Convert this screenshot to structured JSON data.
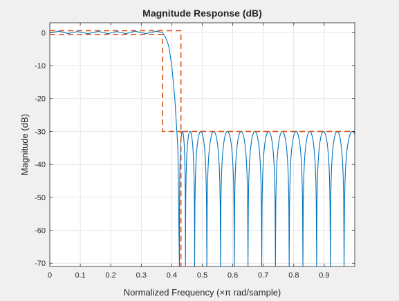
{
  "chart_data": {
    "type": "line",
    "title": "Magnitude Response (dB)",
    "xlabel": "Normalized Frequency (×π rad/sample)",
    "ylabel": "Magnitude (dB)",
    "xlim": [
      0,
      1
    ],
    "ylim": [
      -71,
      3
    ],
    "grid": true,
    "x_ticks": [
      "0",
      "0.1",
      "0.2",
      "0.3",
      "0.4",
      "0.5",
      "0.6",
      "0.7",
      "0.8",
      "0.9"
    ],
    "x_tick_values": [
      0,
      0.1,
      0.2,
      0.3,
      0.4,
      0.5,
      0.6,
      0.7,
      0.8,
      0.9
    ],
    "y_ticks": [
      "0",
      "-10",
      "-20",
      "-30",
      "-40",
      "-50",
      "-60",
      "-70"
    ],
    "y_tick_values": [
      0,
      -10,
      -20,
      -30,
      -40,
      -50,
      -60,
      -70
    ],
    "passband_edge": 0.37,
    "stopband_edge": 0.43,
    "passband_ripple_db": 0.6,
    "stopband_attenuation_db": -30,
    "stopband_nulls": [
      0.425,
      0.445,
      0.475,
      0.515,
      0.56,
      0.605,
      0.65,
      0.695,
      0.74,
      0.785,
      0.83,
      0.875,
      0.92,
      0.965
    ],
    "passband_peaks": [
      [
        0.03,
        0.45
      ],
      [
        0.09,
        0.35
      ],
      [
        0.16,
        0.4
      ],
      [
        0.22,
        0.35
      ],
      [
        0.28,
        0.45
      ],
      [
        0.35,
        0.45
      ]
    ],
    "passband_troughs": [
      [
        0.0,
        -0.1
      ],
      [
        0.06,
        -0.25
      ],
      [
        0.125,
        -0.3
      ],
      [
        0.19,
        -0.3
      ],
      [
        0.25,
        -0.3
      ],
      [
        0.315,
        -0.3
      ]
    ],
    "series": [
      {
        "type": "curve",
        "color": "#0072bd",
        "points": [
          [
            0,
            -0.1
          ],
          [
            0.03,
            0.45
          ],
          [
            0.06,
            -0.25
          ],
          [
            0.09,
            0.35
          ],
          [
            0.125,
            -0.3
          ],
          [
            0.16,
            0.4
          ],
          [
            0.19,
            -0.3
          ],
          [
            0.22,
            0.35
          ],
          [
            0.25,
            -0.3
          ],
          [
            0.28,
            0.45
          ],
          [
            0.315,
            -0.3
          ],
          [
            0.35,
            0.45
          ],
          [
            0.37,
            0.0
          ],
          [
            0.38,
            -1.5
          ],
          [
            0.39,
            -4
          ],
          [
            0.4,
            -10
          ],
          [
            0.41,
            -20
          ],
          [
            0.42,
            -35
          ],
          [
            0.425,
            -71
          ]
        ]
      },
      {
        "type": "constraint",
        "color": "#d95319",
        "dashed": true,
        "upper_mask": [
          [
            0,
            0.6
          ],
          [
            0.43,
            0.6
          ],
          [
            0.43,
            -30
          ],
          [
            1,
            -30
          ]
        ],
        "lower_mask": [
          [
            0,
            -0.6
          ],
          [
            0.37,
            -0.6
          ],
          [
            0.37,
            -30
          ],
          [
            0.43,
            -30
          ],
          [
            0.43,
            -71
          ]
        ]
      }
    ]
  }
}
